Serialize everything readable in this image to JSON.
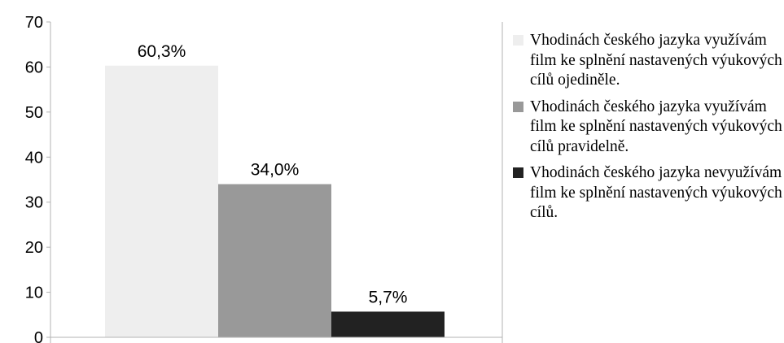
{
  "chart_data": {
    "type": "bar",
    "title": "",
    "xlabel": "",
    "ylabel": "",
    "ylim": [
      0,
      70
    ],
    "yticks": [
      0,
      10,
      20,
      30,
      40,
      50,
      60,
      70
    ],
    "grid": false,
    "legend_position": "right",
    "series": [
      {
        "name": "Vhodinách českého jazyka využívám film ke splnění nastavených výukových cílů ojediněle.",
        "value": 60.3,
        "label": "60,3%",
        "color": "#eeeeee"
      },
      {
        "name": "Vhodinách českého jazyka využívám film ke splnění nastavených výukových cílů pravidelně.",
        "value": 34.0,
        "label": "34,0%",
        "color": "#999999"
      },
      {
        "name": "Vhodinách českého jazyka nevyužívám film ke splnění nastavených výukových cílů.",
        "value": 5.7,
        "label": "5,7%",
        "color": "#222222"
      }
    ]
  }
}
